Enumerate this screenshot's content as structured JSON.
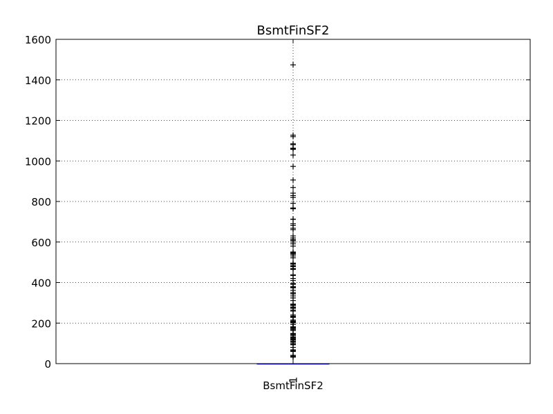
{
  "chart_data": {
    "type": "box",
    "title": "BsmtFinSF2",
    "xlabel": "BsmtFinSF2",
    "ylabel": "",
    "ylim": [
      0,
      1600
    ],
    "yticks": [
      0,
      200,
      400,
      600,
      800,
      1000,
      1200,
      1400,
      1600
    ],
    "xticks": [
      "1"
    ],
    "grid": true,
    "series": [
      {
        "box": {
          "min": 0,
          "q1": 0,
          "median": 0,
          "q3": 0,
          "max": 0
        },
        "outliers": [
          32,
          35,
          40,
          41,
          60,
          64,
          68,
          80,
          93,
          96,
          102,
          108,
          110,
          116,
          117,
          120,
          123,
          127,
          128,
          132,
          139,
          144,
          147,
          149,
          163,
          168,
          173,
          177,
          180,
          181,
          182,
          193,
          201,
          202,
          206,
          208,
          210,
          215,
          228,
          230,
          233,
          239,
          240,
          259,
          264,
          273,
          276,
          279,
          287,
          290,
          294,
          311,
          324,
          334,
          344,
          345,
          351,
          362,
          374,
          377,
          380,
          391,
          396,
          410,
          420,
          435,
          438,
          465,
          468,
          469,
          479,
          480,
          483,
          491,
          492,
          496,
          522,
          531,
          539,
          544,
          547,
          551,
          580,
          591,
          600,
          608,
          612,
          620,
          630,
          661,
          668,
          682,
          690,
          712,
          713,
          764,
          768,
          791,
          820,
          829,
          841,
          869,
          906,
          973,
          1029,
          1057,
          1061,
          1063,
          1080,
          1085,
          1120,
          1127,
          1474
        ]
      }
    ],
    "colors": {
      "box": "#0000ff",
      "median": "#ff0000",
      "flier": "#000000",
      "grid": "#000000"
    }
  }
}
